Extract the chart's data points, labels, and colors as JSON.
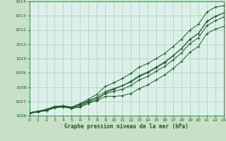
{
  "xlabel": "Graphe pression niveau de la mer (hPa)",
  "background_color": "#c8dfc8",
  "plot_bg_color": "#daf0e8",
  "grid_color": "#b0ccb8",
  "line_color": "#1a5c28",
  "marker_color": "#1a5c28",
  "ylim": [
    1006,
    1014
  ],
  "xlim": [
    0,
    23
  ],
  "yticks": [
    1006,
    1007,
    1008,
    1009,
    1010,
    1011,
    1012,
    1013,
    1014
  ],
  "xticks": [
    0,
    1,
    2,
    3,
    4,
    5,
    6,
    7,
    8,
    9,
    10,
    11,
    12,
    13,
    14,
    15,
    16,
    17,
    18,
    19,
    20,
    21,
    22,
    23
  ],
  "series": [
    [
      1006.2,
      1006.3,
      1006.35,
      1006.55,
      1006.65,
      1006.55,
      1006.65,
      1006.95,
      1007.05,
      1007.35,
      1007.35,
      1007.4,
      1007.55,
      1007.9,
      1008.15,
      1008.5,
      1008.85,
      1009.3,
      1009.8,
      1010.45,
      1010.85,
      1011.75,
      1012.05,
      1012.25
    ],
    [
      1006.2,
      1006.3,
      1006.4,
      1006.6,
      1006.65,
      1006.55,
      1006.75,
      1007.0,
      1007.2,
      1007.55,
      1007.7,
      1007.85,
      1008.1,
      1008.5,
      1008.75,
      1009.1,
      1009.45,
      1009.9,
      1010.4,
      1011.05,
      1011.45,
      1012.3,
      1012.65,
      1012.9
    ],
    [
      1006.2,
      1006.3,
      1006.4,
      1006.6,
      1006.65,
      1006.55,
      1006.8,
      1007.05,
      1007.3,
      1007.7,
      1007.9,
      1008.1,
      1008.4,
      1008.8,
      1009.05,
      1009.4,
      1009.75,
      1010.2,
      1010.7,
      1011.35,
      1011.75,
      1012.6,
      1012.95,
      1013.2
    ],
    [
      1006.15,
      1006.25,
      1006.35,
      1006.55,
      1006.6,
      1006.5,
      1006.6,
      1006.85,
      1007.1,
      1007.6,
      1007.85,
      1008.1,
      1008.35,
      1008.75,
      1009.0,
      1009.35,
      1009.7,
      1010.2,
      1010.7,
      1011.35,
      1011.75,
      1012.6,
      1012.95,
      1013.2
    ]
  ],
  "series_top": [
    1006.2,
    1006.3,
    1006.45,
    1006.65,
    1006.7,
    1006.6,
    1006.85,
    1007.15,
    1007.5,
    1008.05,
    1008.3,
    1008.6,
    1008.95,
    1009.4,
    1009.65,
    1010.0,
    1010.35,
    1010.85,
    1011.35,
    1012.0,
    1012.4,
    1013.25,
    1013.6,
    1013.7
  ]
}
